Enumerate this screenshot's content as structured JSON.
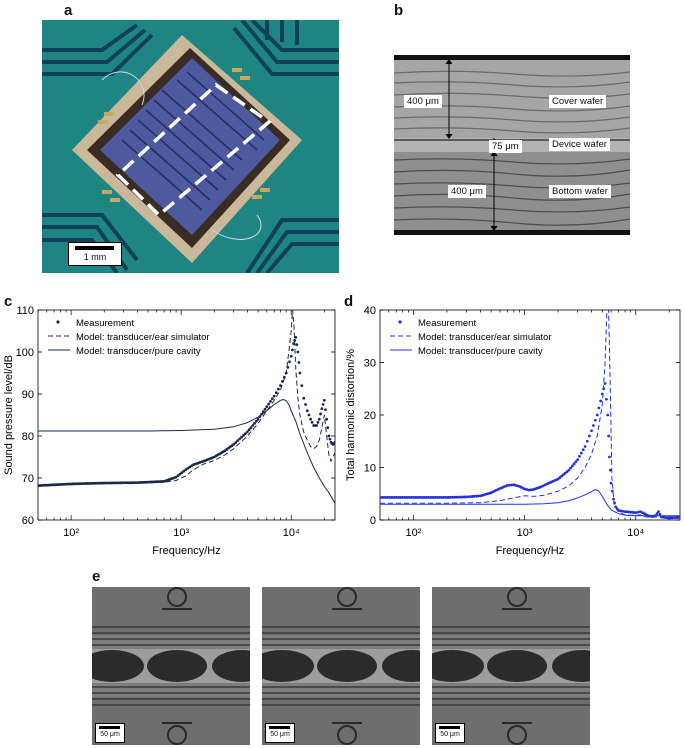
{
  "panels": {
    "a": {
      "letter": "a",
      "scale_label": "1 mm"
    },
    "b": {
      "letter": "b",
      "labels": {
        "cover_thickness": "400 μm",
        "cover": "Cover wafer",
        "device_thickness": "75 μm",
        "device": "Device wafer",
        "bottom_thickness": "400 μm",
        "bottom": "Bottom wafer"
      }
    },
    "c": {
      "letter": "c"
    },
    "d": {
      "letter": "d"
    },
    "e": {
      "letter": "e",
      "scale_labels": [
        "50 μm",
        "50 μm",
        "50 μm"
      ]
    }
  },
  "chart_data": [
    {
      "type": "line",
      "panel": "c",
      "xlabel": "Frequency/Hz",
      "ylabel": "Sound pressure level/dB",
      "xscale": "log",
      "xlim": [
        50,
        25000
      ],
      "ylim": [
        60,
        110
      ],
      "yticks": [
        60,
        70,
        80,
        90,
        100,
        110
      ],
      "xticks": [
        "10²",
        "10³",
        "10⁴"
      ],
      "legend_position": "top-left",
      "color": "#1b2a4a",
      "series": [
        {
          "name": "Measurement",
          "style": "dots",
          "x": [
            50,
            100,
            200,
            400,
            700,
            900,
            1100,
            1300,
            1600,
            2000,
            2500,
            3000,
            4000,
            5000,
            6000,
            7000,
            8000,
            9000,
            10000,
            10500,
            11000,
            11500,
            12000,
            13000,
            14000,
            15000,
            16000,
            17000,
            18000,
            19000,
            20000,
            21000,
            22000,
            23000,
            24000,
            25000
          ],
          "y": [
            68.2,
            68.6,
            68.8,
            68.9,
            69.2,
            70.2,
            72.0,
            73.2,
            74.0,
            75.0,
            76.5,
            78.0,
            81.0,
            84.0,
            87.0,
            89.5,
            92.0,
            95.0,
            99.0,
            102.0,
            103.5,
            100.0,
            95.0,
            89.0,
            86.0,
            84.0,
            82.5,
            82.5,
            84.0,
            86.5,
            88.5,
            84.0,
            80.0,
            78.5,
            78.0,
            78.5
          ]
        },
        {
          "name": "Model: transducer/ear simulator",
          "style": "dashed",
          "x": [
            50,
            100,
            200,
            400,
            700,
            900,
            1100,
            1300,
            1600,
            2000,
            2500,
            3000,
            4000,
            5000,
            6000,
            7000,
            8000,
            9000,
            9500,
            10000,
            10300,
            10600,
            11000,
            11500,
            12000,
            13000,
            14000,
            15000,
            16000,
            17000,
            18000,
            19000,
            20000,
            21000,
            22000,
            23000,
            25000
          ],
          "y": [
            68.0,
            68.4,
            68.7,
            68.8,
            69.0,
            69.4,
            70.5,
            72.0,
            73.3,
            74.2,
            75.5,
            77.0,
            80.0,
            83.0,
            86.0,
            88.5,
            91.0,
            95.0,
            100.0,
            105.0,
            110.0,
            106.0,
            96.0,
            89.0,
            85.0,
            81.0,
            79.0,
            77.5,
            77.0,
            77.5,
            79.0,
            82.0,
            85.0,
            80.0,
            75.5,
            74.0,
            76.0
          ]
        },
        {
          "name": "Model: transducer/pure cavity",
          "style": "solid",
          "x": [
            50,
            100,
            200,
            500,
            1000,
            2000,
            3000,
            4000,
            5000,
            6000,
            7000,
            8000,
            8500,
            9000,
            9500,
            10000,
            11000,
            12000,
            14000,
            16000,
            18000,
            20000,
            22000,
            25000
          ],
          "y": [
            81.2,
            81.2,
            81.2,
            81.2,
            81.3,
            81.6,
            82.2,
            83.2,
            84.5,
            86.0,
            87.5,
            88.5,
            88.7,
            88.4,
            87.5,
            86.0,
            83.5,
            80.5,
            76.0,
            72.5,
            70.0,
            68.0,
            66.5,
            64.0
          ]
        }
      ]
    },
    {
      "type": "line",
      "panel": "d",
      "xlabel": "Frequency/Hz",
      "ylabel": "Total harmonic distortion/%",
      "xscale": "log",
      "xlim": [
        50,
        25000
      ],
      "ylim": [
        0,
        40
      ],
      "yticks": [
        0,
        10,
        20,
        30,
        40
      ],
      "xticks": [
        "10²",
        "10³",
        "10⁴"
      ],
      "legend_position": "top-left",
      "color": "#2233dd",
      "series": [
        {
          "name": "Measurement",
          "style": "dots",
          "x": [
            50,
            100,
            200,
            300,
            400,
            500,
            600,
            700,
            800,
            900,
            1000,
            1100,
            1200,
            1400,
            1600,
            2000,
            2500,
            3000,
            3500,
            4000,
            4500,
            5000,
            5300,
            5600,
            5800,
            6000,
            6300,
            6600,
            7000,
            8000,
            9000,
            10000,
            11000,
            12000,
            13000,
            14000,
            15000,
            16000,
            17000,
            18000,
            20000,
            25000
          ],
          "y": [
            4.3,
            4.3,
            4.3,
            4.4,
            4.6,
            5.2,
            6.0,
            6.6,
            6.7,
            6.4,
            5.9,
            5.7,
            5.8,
            6.3,
            6.9,
            7.8,
            9.5,
            11.5,
            14.0,
            17.0,
            20.0,
            24.0,
            26.0,
            20.0,
            12.0,
            7.0,
            4.0,
            2.5,
            1.8,
            1.6,
            1.5,
            1.4,
            1.6,
            1.2,
            0.8,
            0.7,
            0.8,
            1.6,
            0.6,
            0.5,
            0.4,
            0.5
          ]
        },
        {
          "name": "Model: transducer/ear simulator",
          "style": "dashed",
          "x": [
            50,
            100,
            200,
            400,
            600,
            800,
            1000,
            1200,
            1500,
            2000,
            2500,
            3000,
            3500,
            4000,
            4500,
            5000,
            5300,
            5500,
            5700,
            5900,
            6100,
            6400,
            7000,
            8000,
            9000,
            10000,
            11000,
            12000,
            14000,
            16000,
            18000,
            20000,
            25000
          ],
          "y": [
            3.2,
            3.2,
            3.2,
            3.3,
            3.7,
            4.2,
            4.6,
            4.5,
            4.7,
            5.5,
            6.5,
            8.0,
            10.0,
            12.5,
            16.0,
            22.0,
            30.0,
            40.0,
            40.0,
            25.0,
            8.0,
            3.0,
            1.5,
            1.0,
            0.9,
            0.9,
            1.0,
            0.6,
            0.5,
            0.6,
            0.8,
            0.6,
            0.7
          ]
        },
        {
          "name": "Model: transducer/pure cavity",
          "style": "solid",
          "x": [
            50,
            100,
            200,
            500,
            800,
            1000,
            1500,
            2000,
            2500,
            3000,
            3500,
            4000,
            4300,
            4600,
            5000,
            5500,
            6000,
            7000,
            8000,
            10000,
            12000,
            15000,
            20000,
            25000
          ],
          "y": [
            3.0,
            3.0,
            3.0,
            3.0,
            3.0,
            3.0,
            3.1,
            3.3,
            3.7,
            4.2,
            4.8,
            5.4,
            5.8,
            5.6,
            4.5,
            3.0,
            1.9,
            1.2,
            0.9,
            0.8,
            0.8,
            0.8,
            0.8,
            0.8
          ]
        }
      ]
    }
  ]
}
